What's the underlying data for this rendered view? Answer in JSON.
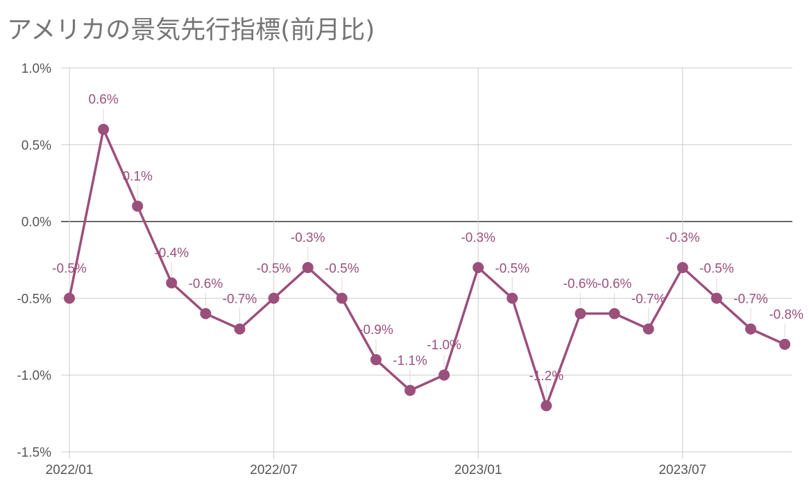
{
  "chart_data": {
    "type": "line",
    "title": "アメリカの景気先行指標(前月比)",
    "xlabel": "",
    "ylabel": "",
    "ylim": [
      -1.5,
      1.0
    ],
    "yticks": [
      "1.0%",
      "0.5%",
      "0.0%",
      "-0.5%",
      "-1.0%",
      "-1.5%"
    ],
    "yticks_values": [
      1.0,
      0.5,
      0.0,
      -0.5,
      -1.0,
      -1.5
    ],
    "xticks": [
      "2022/01",
      "2022/07",
      "2023/01",
      "2023/07"
    ],
    "x": [
      "2022/01",
      "2022/02",
      "2022/03",
      "2022/04",
      "2022/05",
      "2022/06",
      "2022/07",
      "2022/08",
      "2022/09",
      "2022/10",
      "2022/11",
      "2022/12",
      "2023/01",
      "2023/02",
      "2023/03",
      "2023/04",
      "2023/05",
      "2023/06",
      "2023/07",
      "2023/08",
      "2023/09",
      "2023/10"
    ],
    "series": [
      {
        "values": [
          -0.5,
          0.6,
          0.1,
          -0.4,
          -0.6,
          -0.7,
          -0.5,
          -0.3,
          -0.5,
          -0.9,
          -1.1,
          -1.0,
          -0.3,
          -0.5,
          -1.2,
          -0.6,
          -0.6,
          -0.7,
          -0.3,
          -0.5,
          -0.7,
          -0.8
        ],
        "labels": [
          "-0.5%",
          "0.6%",
          "0.1%",
          "-0.4%",
          "-0.6%",
          "-0.7%",
          "-0.5%",
          "-0.3%",
          "-0.5%",
          "-0.9%",
          "-1.1%",
          "-1.0%",
          "-0.3%",
          "-0.5%",
          "-1.2%",
          "-0.6%",
          "-0.6%",
          "-0.7%",
          "-0.3%",
          "-0.5%",
          "-0.7%",
          "-0.8%"
        ],
        "color": "#9b4f7b"
      }
    ],
    "grid": true,
    "legend": "none"
  },
  "colors": {
    "series": "#9b4f7b",
    "grid": "#cccccc",
    "zero_line": "#333333",
    "title": "#757575",
    "tick": "#555555"
  }
}
